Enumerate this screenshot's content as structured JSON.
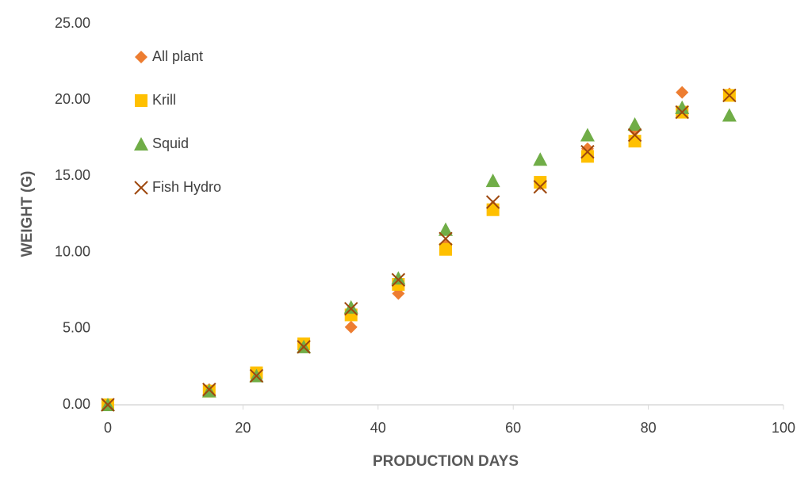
{
  "chart_data": {
    "type": "scatter",
    "x_label": "PRODUCTION DAYS",
    "y_label": "WEIGHT (G)",
    "x": [
      0,
      15,
      22,
      29,
      36,
      43,
      50,
      57,
      64,
      71,
      78,
      85,
      92
    ],
    "series": [
      {
        "name": "All plant",
        "color": "#ED7D31",
        "marker": "diamond",
        "values": [
          0,
          1.0,
          2.0,
          4.0,
          5.1,
          7.3,
          10.5,
          13.0,
          14.5,
          16.8,
          18.0,
          20.5,
          20.4
        ]
      },
      {
        "name": "Krill",
        "color": "#FFC000",
        "marker": "square",
        "values": [
          0,
          0.9,
          2.1,
          4.0,
          5.9,
          7.9,
          10.2,
          12.8,
          14.6,
          16.3,
          17.3,
          19.2,
          20.3
        ]
      },
      {
        "name": "Squid",
        "color": "#70AD47",
        "marker": "triangle",
        "values": [
          0,
          0.9,
          1.9,
          3.8,
          6.4,
          8.3,
          11.5,
          14.7,
          16.1,
          17.7,
          18.4,
          19.5,
          19.0
        ]
      },
      {
        "name": "Fish Hydro",
        "color": "#9E480E",
        "marker": "x",
        "values": [
          0,
          1.0,
          1.9,
          3.8,
          6.3,
          8.2,
          10.9,
          13.3,
          14.3,
          16.6,
          17.7,
          19.2,
          20.3
        ]
      }
    ],
    "xlim": [
      0,
      100
    ],
    "xticks": [
      0,
      20,
      40,
      60,
      80,
      100
    ],
    "ylim": [
      0,
      25
    ],
    "yticks": [
      {
        "value": 0,
        "label": "0.00"
      },
      {
        "value": 5,
        "label": "5.00"
      },
      {
        "value": 10,
        "label": "10.00"
      },
      {
        "value": 15,
        "label": "15.00"
      },
      {
        "value": 20,
        "label": "20.00"
      },
      {
        "value": 25,
        "label": "25.00"
      }
    ],
    "grid": false,
    "legend": "upper-left"
  }
}
